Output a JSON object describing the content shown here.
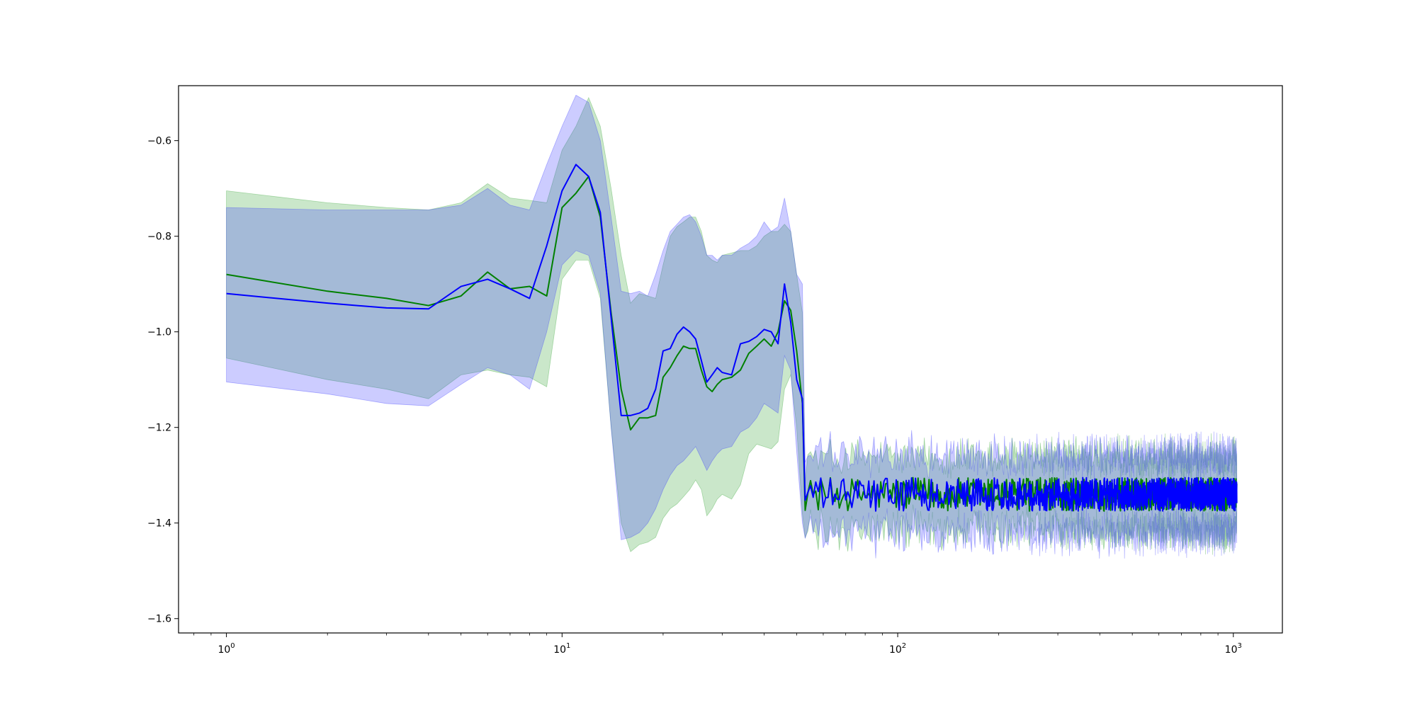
{
  "chart_data": {
    "type": "line",
    "title": "",
    "xlabel": "",
    "ylabel": "",
    "x_scale": "log",
    "xlim": [
      0.72,
      1400
    ],
    "ylim": [
      -1.63,
      -0.485
    ],
    "grid": false,
    "legend": "none",
    "x_ticks": [
      {
        "value": 1,
        "base": "10",
        "exp": "0"
      },
      {
        "value": 10,
        "base": "10",
        "exp": "1"
      },
      {
        "value": 100,
        "base": "10",
        "exp": "2"
      },
      {
        "value": 1000,
        "base": "10",
        "exp": "3"
      }
    ],
    "y_ticks": [
      {
        "value": -0.6,
        "label": "−0.6"
      },
      {
        "value": -0.8,
        "label": "−0.8"
      },
      {
        "value": -1.0,
        "label": "−1.0"
      },
      {
        "value": -1.2,
        "label": "−1.2"
      },
      {
        "value": -1.4,
        "label": "−1.4"
      },
      {
        "value": -1.6,
        "label": "−1.6"
      }
    ],
    "series": [
      {
        "color": "#008000",
        "band_color": "#2ca02c",
        "band_opacity": 0.25,
        "points": [
          [
            1,
            -0.88,
            -1.055,
            -0.705
          ],
          [
            2,
            -0.915,
            -1.1,
            -0.73
          ],
          [
            3,
            -0.93,
            -1.12,
            -0.74
          ],
          [
            4,
            -0.945,
            -1.14,
            -0.745
          ],
          [
            5,
            -0.925,
            -1.09,
            -0.73
          ],
          [
            6,
            -0.875,
            -1.08,
            -0.69
          ],
          [
            7,
            -0.91,
            -1.09,
            -0.72
          ],
          [
            8,
            -0.905,
            -1.095,
            -0.725
          ],
          [
            9,
            -0.925,
            -1.115,
            -0.73
          ],
          [
            10,
            -0.74,
            -0.89,
            -0.62
          ],
          [
            11,
            -0.71,
            -0.85,
            -0.57
          ],
          [
            12,
            -0.675,
            -0.85,
            -0.51
          ],
          [
            13,
            -0.76,
            -0.93,
            -0.57
          ],
          [
            14,
            -0.96,
            -1.2,
            -0.7
          ],
          [
            15,
            -1.12,
            -1.4,
            -0.84
          ],
          [
            16,
            -1.205,
            -1.46,
            -0.94
          ],
          [
            17,
            -1.18,
            -1.445,
            -0.92
          ],
          [
            18,
            -1.18,
            -1.44,
            -0.925
          ],
          [
            19,
            -1.175,
            -1.43,
            -0.93
          ],
          [
            20,
            -1.095,
            -1.39,
            -0.86
          ],
          [
            21,
            -1.075,
            -1.37,
            -0.8
          ],
          [
            22,
            -1.05,
            -1.36,
            -0.78
          ],
          [
            23,
            -1.03,
            -1.345,
            -0.77
          ],
          [
            24,
            -1.035,
            -1.33,
            -0.76
          ],
          [
            25,
            -1.035,
            -1.31,
            -0.76
          ],
          [
            26,
            -1.08,
            -1.33,
            -0.79
          ],
          [
            27,
            -1.115,
            -1.385,
            -0.84
          ],
          [
            28,
            -1.125,
            -1.37,
            -0.85
          ],
          [
            29,
            -1.11,
            -1.35,
            -0.855
          ],
          [
            30,
            -1.1,
            -1.34,
            -0.84
          ],
          [
            32,
            -1.095,
            -1.35,
            -0.835
          ],
          [
            34,
            -1.08,
            -1.32,
            -0.83
          ],
          [
            36,
            -1.045,
            -1.255,
            -0.83
          ],
          [
            38,
            -1.03,
            -1.235,
            -0.82
          ],
          [
            40,
            -1.015,
            -1.24,
            -0.8
          ],
          [
            42,
            -1.03,
            -1.245,
            -0.79
          ],
          [
            44,
            -1.0,
            -1.23,
            -0.79
          ],
          [
            46,
            -0.935,
            -1.12,
            -0.775
          ],
          [
            48,
            -0.955,
            -1.09,
            -0.79
          ],
          [
            50,
            -1.04,
            -1.2,
            -0.88
          ],
          [
            52,
            -1.15,
            -1.38,
            -0.96
          ]
        ],
        "noise_regime": {
          "x_start": 53,
          "x_end": 1024,
          "mean": -1.34,
          "amplitude": 0.035,
          "band_halfwidth": 0.075
        }
      },
      {
        "color": "#0000ff",
        "band_color": "#3333ff",
        "band_opacity": 0.25,
        "points": [
          [
            1,
            -0.92,
            -1.105,
            -0.74
          ],
          [
            2,
            -0.94,
            -1.13,
            -0.745
          ],
          [
            3,
            -0.95,
            -1.15,
            -0.745
          ],
          [
            4,
            -0.952,
            -1.155,
            -0.745
          ],
          [
            5,
            -0.905,
            -1.11,
            -0.735
          ],
          [
            6,
            -0.89,
            -1.075,
            -0.7
          ],
          [
            7,
            -0.91,
            -1.09,
            -0.735
          ],
          [
            8,
            -0.93,
            -1.12,
            -0.745
          ],
          [
            9,
            -0.82,
            -1.0,
            -0.65
          ],
          [
            10,
            -0.705,
            -0.86,
            -0.57
          ],
          [
            11,
            -0.65,
            -0.83,
            -0.505
          ],
          [
            12,
            -0.675,
            -0.84,
            -0.52
          ],
          [
            13,
            -0.75,
            -0.92,
            -0.6
          ],
          [
            14,
            -0.97,
            -1.2,
            -0.76
          ],
          [
            15,
            -1.175,
            -1.435,
            -0.915
          ],
          [
            16,
            -1.175,
            -1.43,
            -0.92
          ],
          [
            17,
            -1.17,
            -1.42,
            -0.915
          ],
          [
            18,
            -1.16,
            -1.4,
            -0.925
          ],
          [
            19,
            -1.12,
            -1.37,
            -0.88
          ],
          [
            20,
            -1.04,
            -1.33,
            -0.83
          ],
          [
            21,
            -1.035,
            -1.3,
            -0.79
          ],
          [
            22,
            -1.005,
            -1.28,
            -0.775
          ],
          [
            23,
            -0.99,
            -1.27,
            -0.76
          ],
          [
            24,
            -1.0,
            -1.255,
            -0.755
          ],
          [
            25,
            -1.015,
            -1.24,
            -0.77
          ],
          [
            26,
            -1.06,
            -1.265,
            -0.8
          ],
          [
            27,
            -1.105,
            -1.29,
            -0.84
          ],
          [
            28,
            -1.09,
            -1.27,
            -0.84
          ],
          [
            29,
            -1.075,
            -1.255,
            -0.85
          ],
          [
            30,
            -1.085,
            -1.245,
            -0.84
          ],
          [
            32,
            -1.09,
            -1.24,
            -0.84
          ],
          [
            34,
            -1.025,
            -1.21,
            -0.825
          ],
          [
            36,
            -1.02,
            -1.2,
            -0.815
          ],
          [
            38,
            -1.01,
            -1.18,
            -0.8
          ],
          [
            40,
            -0.995,
            -1.15,
            -0.77
          ],
          [
            42,
            -1.0,
            -1.16,
            -0.79
          ],
          [
            44,
            -1.025,
            -1.17,
            -0.78
          ],
          [
            46,
            -0.9,
            -1.05,
            -0.72
          ],
          [
            48,
            -0.98,
            -1.08,
            -0.79
          ],
          [
            50,
            -1.1,
            -1.25,
            -0.88
          ],
          [
            52,
            -1.14,
            -1.4,
            -0.9
          ]
        ],
        "noise_regime": {
          "x_start": 53,
          "x_end": 1024,
          "mean": -1.34,
          "amplitude": 0.035,
          "band_halfwidth": 0.08
        }
      }
    ]
  }
}
